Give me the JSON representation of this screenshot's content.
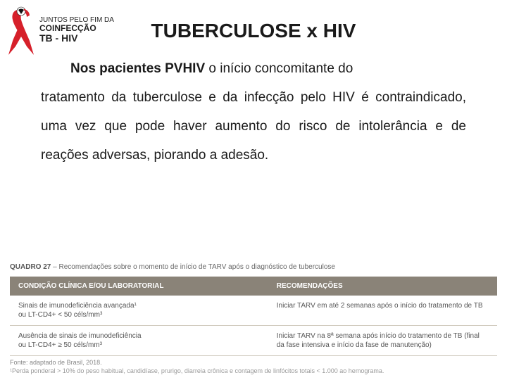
{
  "logo": {
    "tagline_line1": "JUNTOS PELO FIM DA",
    "tagline_line2": "COINFECÇÃO",
    "tagline_line3": "TB - HIV",
    "ribbon_color": "#d6202a",
    "accent_color": "#111111"
  },
  "title": "TUBERCULOSE x HIV",
  "paragraph": {
    "lead_bold": "Nos pacientes PVHIV",
    "lead_rest": " o início concomitante do",
    "body": "tratamento da tuberculose e da infecção pelo HIV é contraindicado, uma vez que pode haver aumento do risco de intolerância e de reações adversas, piorando a adesão."
  },
  "table": {
    "caption_label": "QUADRO 27",
    "caption_text": " – Recomendações sobre o momento de início de TARV após o diagnóstico de tuberculose",
    "header_bg": "#8a8378",
    "header_fg": "#ffffff",
    "columns": [
      "CONDIÇÃO CLÍNICA E/OU LABORATORIAL",
      "RECOMENDAÇÕES"
    ],
    "rows": [
      [
        "Sinais de imunodeficiência avançada¹\nou LT-CD4+ < 50 céls/mm³",
        "Iniciar TARV em até 2 semanas após o início do tratamento de TB"
      ],
      [
        "Ausência de sinais de imunodeficiência\nou LT-CD4+ ≥ 50 céls/mm³",
        "Iniciar TARV na 8ª semana após início do tratamento de TB (final da fase intensiva e início da fase de manutenção)"
      ]
    ],
    "source": "Fonte: adaptado de Brasil, 2018.",
    "footnote": "¹Perda ponderal > 10% do peso habitual, candidíase, prurigo, diarreia crônica e contagem de linfócitos totais < 1.000 ao hemograma."
  },
  "colors": {
    "page_bg": "#ffffff",
    "text": "#1a1a1a",
    "table_border": "#cfc9bd",
    "muted": "#888888"
  }
}
